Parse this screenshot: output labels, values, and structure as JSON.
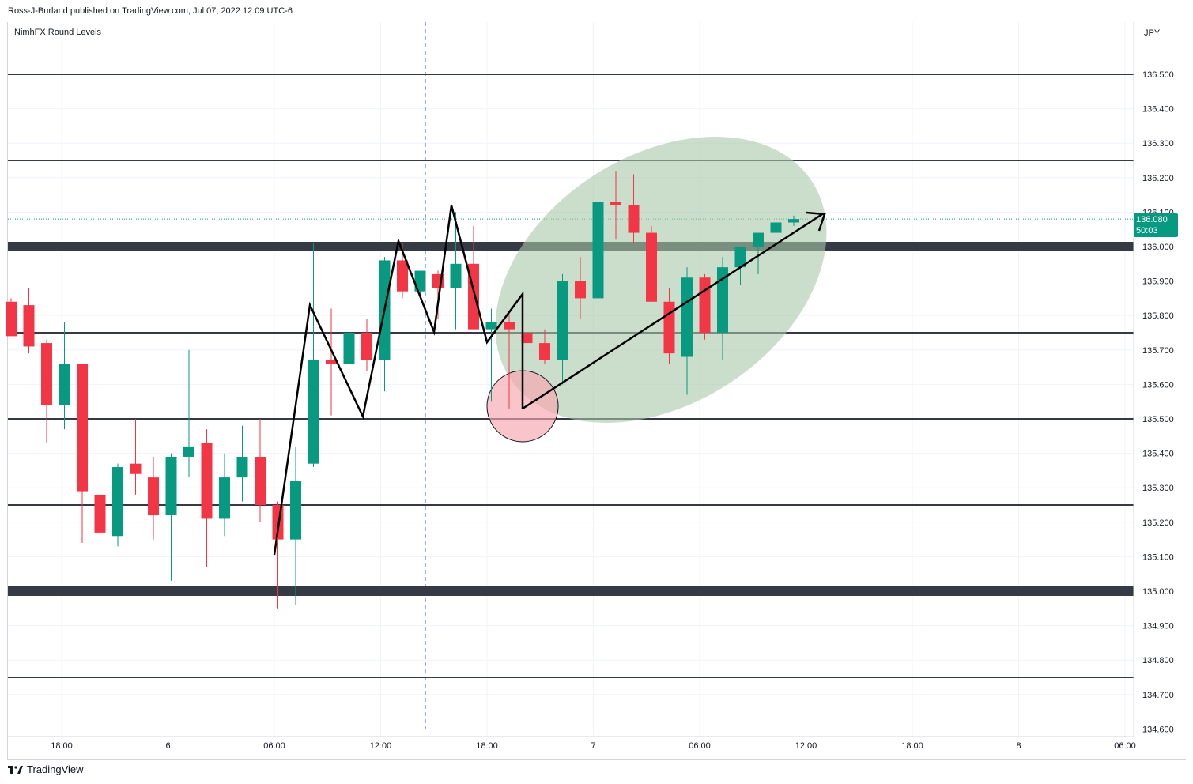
{
  "publisher_line": "Ross-J-Burland published on TradingView.com, Jul 07, 2022 12:09 UTC-6",
  "indicator_label": "NimhFX Round Levels",
  "footer_brand": "TradingView",
  "last_price_tag": {
    "price": "136.080",
    "countdown": "50:03"
  },
  "colors": {
    "up": "#089981",
    "down": "#f23645",
    "grid": "#f0f3fa",
    "level": "#363a45",
    "ellipse": "#a9c7a8",
    "circle": "#f7a6ad"
  },
  "chart_data": {
    "type": "candlestick",
    "currency_label": "JPY",
    "y_ticks": [
      "136.500",
      "136.400",
      "136.300",
      "136.200",
      "136.100",
      "136.000",
      "135.900",
      "135.800",
      "135.700",
      "135.600",
      "135.500",
      "135.400",
      "135.300",
      "135.200",
      "135.100",
      "135.000",
      "134.900",
      "134.800",
      "134.700",
      "134.600"
    ],
    "x_ticks": [
      "18:00",
      "6",
      "06:00",
      "12:00",
      "18:00",
      "7",
      "06:00",
      "12:00",
      "18:00",
      "8",
      "06:00"
    ],
    "ylim": [
      134.58,
      136.62
    ],
    "round_levels": {
      "thick": [
        136.0,
        135.0
      ],
      "thin": [
        136.5,
        136.25,
        135.75,
        135.5,
        135.25,
        134.75
      ]
    },
    "candles": [
      {
        "o": 135.84,
        "h": 135.85,
        "l": 135.74,
        "c": 135.74
      },
      {
        "o": 135.83,
        "h": 135.88,
        "l": 135.69,
        "c": 135.71
      },
      {
        "o": 135.72,
        "h": 135.73,
        "l": 135.43,
        "c": 135.54
      },
      {
        "o": 135.54,
        "h": 135.78,
        "l": 135.47,
        "c": 135.66
      },
      {
        "o": 135.66,
        "h": 135.66,
        "l": 135.14,
        "c": 135.29
      },
      {
        "o": 135.28,
        "h": 135.31,
        "l": 135.15,
        "c": 135.17
      },
      {
        "o": 135.16,
        "h": 135.37,
        "l": 135.13,
        "c": 135.36
      },
      {
        "o": 135.37,
        "h": 135.5,
        "l": 135.28,
        "c": 135.34
      },
      {
        "o": 135.33,
        "h": 135.39,
        "l": 135.15,
        "c": 135.22
      },
      {
        "o": 135.22,
        "h": 135.4,
        "l": 135.03,
        "c": 135.39
      },
      {
        "o": 135.39,
        "h": 135.7,
        "l": 135.33,
        "c": 135.42
      },
      {
        "o": 135.43,
        "h": 135.47,
        "l": 135.07,
        "c": 135.21
      },
      {
        "o": 135.21,
        "h": 135.4,
        "l": 135.16,
        "c": 135.33
      },
      {
        "o": 135.33,
        "h": 135.48,
        "l": 135.26,
        "c": 135.39
      },
      {
        "o": 135.39,
        "h": 135.5,
        "l": 135.2,
        "c": 135.25
      },
      {
        "o": 135.25,
        "h": 135.26,
        "l": 134.95,
        "c": 135.15
      },
      {
        "o": 135.15,
        "h": 135.42,
        "l": 134.96,
        "c": 135.32
      },
      {
        "o": 135.37,
        "h": 136.01,
        "l": 135.36,
        "c": 135.67
      },
      {
        "o": 135.67,
        "h": 135.82,
        "l": 135.51,
        "c": 135.66
      },
      {
        "o": 135.66,
        "h": 135.76,
        "l": 135.55,
        "c": 135.75
      },
      {
        "o": 135.75,
        "h": 135.79,
        "l": 135.64,
        "c": 135.67
      },
      {
        "o": 135.67,
        "h": 135.97,
        "l": 135.58,
        "c": 135.96
      },
      {
        "o": 135.96,
        "h": 136.01,
        "l": 135.85,
        "c": 135.87
      },
      {
        "o": 135.87,
        "h": 135.93,
        "l": 135.86,
        "c": 135.93
      },
      {
        "o": 135.92,
        "h": 135.93,
        "l": 135.79,
        "c": 135.88
      },
      {
        "o": 135.88,
        "h": 136.1,
        "l": 135.76,
        "c": 135.95
      },
      {
        "o": 135.95,
        "h": 136.06,
        "l": 135.77,
        "c": 135.76
      },
      {
        "o": 135.76,
        "h": 135.82,
        "l": 135.55,
        "c": 135.78
      },
      {
        "o": 135.78,
        "h": 135.81,
        "l": 135.53,
        "c": 135.76
      },
      {
        "o": 135.75,
        "h": 135.79,
        "l": 135.72,
        "c": 135.72
      },
      {
        "o": 135.72,
        "h": 135.76,
        "l": 135.66,
        "c": 135.67
      },
      {
        "o": 135.67,
        "h": 135.92,
        "l": 135.6,
        "c": 135.9
      },
      {
        "o": 135.9,
        "h": 135.97,
        "l": 135.79,
        "c": 135.85
      },
      {
        "o": 135.85,
        "h": 136.17,
        "l": 135.74,
        "c": 136.13
      },
      {
        "o": 136.13,
        "h": 136.22,
        "l": 136.02,
        "c": 136.12
      },
      {
        "o": 136.12,
        "h": 136.21,
        "l": 136.01,
        "c": 136.04
      },
      {
        "o": 136.04,
        "h": 136.06,
        "l": 135.84,
        "c": 135.84
      },
      {
        "o": 135.84,
        "h": 135.88,
        "l": 135.66,
        "c": 135.69
      },
      {
        "o": 135.68,
        "h": 135.94,
        "l": 135.57,
        "c": 135.91
      },
      {
        "o": 135.91,
        "h": 135.92,
        "l": 135.73,
        "c": 135.75
      },
      {
        "o": 135.75,
        "h": 135.97,
        "l": 135.67,
        "c": 135.94
      },
      {
        "o": 135.94,
        "h": 136.0,
        "l": 135.89,
        "c": 136.0
      },
      {
        "o": 136.0,
        "h": 136.04,
        "l": 135.92,
        "c": 136.04
      },
      {
        "o": 136.04,
        "h": 136.07,
        "l": 135.98,
        "c": 136.07
      },
      {
        "o": 136.07,
        "h": 136.09,
        "l": 136.06,
        "c": 136.08
      }
    ]
  }
}
